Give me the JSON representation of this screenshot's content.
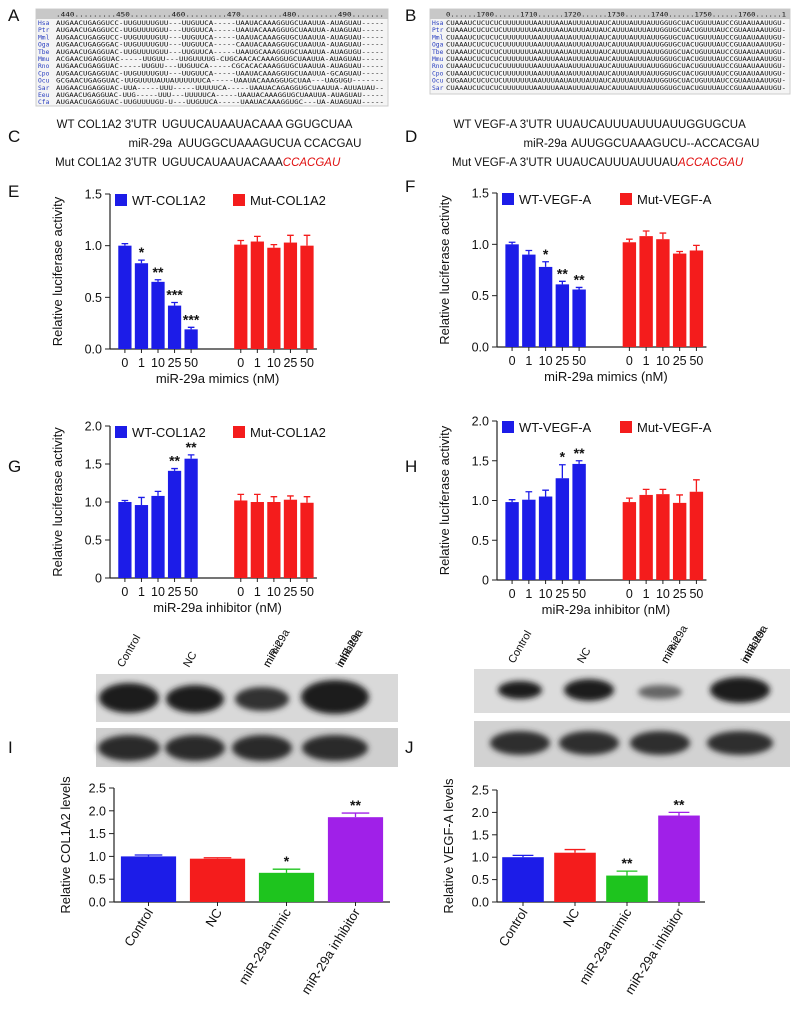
{
  "panel_labels": [
    "A",
    "B",
    "C",
    "D",
    "E",
    "F",
    "G",
    "H",
    "I",
    "J"
  ],
  "alignments": [
    {
      "ruler": ".440.........450.........460.........470.........480.........490.......",
      "rows": [
        {
          "species": "Hsa",
          "sequence": "AUGAACUGAGGUCC-UUGUUUUGUU---UUGUUCA-----UAAUACAAAGGUGCUAAUUA-AUAGUAU-----"
        },
        {
          "species": "Ptr",
          "sequence": "AUGAACUGAGGUCC-UUGUUUUGUU---UUGUUCA-----UAAUACAAAGGUGCUAAUUA-AUAGUAU-----"
        },
        {
          "species": "Mml",
          "sequence": "AUGAACUGAGGUCC-UUGUUUUGUU---UUGUUCA-----UAAUACAAAGGUGCUAAUUA-AUAGUAU-----"
        },
        {
          "species": "Oga",
          "sequence": "AUGAACUGAGGGAC-UUGUUUUGUU---UUGUUCA-----CAAUACAAAGGUGCUAAUUA-AUAGUAU-----"
        },
        {
          "species": "Tbe",
          "sequence": "AUGAACUGAGGUAC-UUGUUUUGUU---UUGUUCA-----UAAUGCAAAGGUGCUAAUUA-AUAGUGU-----"
        },
        {
          "species": "Mmu",
          "sequence": "ACGAACUGAGGUAC-----UUGUU---UUGUUUUG-CUGCAACACAAAGGUGCUAAUUA-AUAGUAU-----"
        },
        {
          "species": "Rno",
          "sequence": "AUGAACUGAGGUAC-----UUGUU---UUGUUCA-----CGCACACAAAGGUGCUAAUUA-AUAGUAU-----"
        },
        {
          "species": "Cpo",
          "sequence": "AUGAACUGAGGUAC-UUGUUUUGUU---UUGUUCA-----UAAUACAAAGGUGCUAAUUA-GCAGUAU-----"
        },
        {
          "species": "Ocu",
          "sequence": "GCGAACUGAGGUAC-UUGUUUUAUUAUUUUUUCA-----UAAUACAAAGGUGCUAA---UAGUGU-------"
        },
        {
          "species": "Sar",
          "sequence": "AUGAACUGAGGUAC-UUA-----UUU-----UUUUUCA-----UAAUACAGAGGUGCUAAUUA-AUUAUAU--"
        },
        {
          "species": "Eeu",
          "sequence": "AUGAACUGAGGUAC-UUG-----UUU---UUUUUCA-----UAAUACAAAGGUGCUAAUUA-AUAGUAU-----"
        },
        {
          "species": "Cfa",
          "sequence": "AUGAACUGAGGUAC-UUGUUUUGU-U---UUGUUCA-----UAAUACAAAGGUGC---UA-AUAGUAU-----"
        }
      ]
    },
    {
      "ruler": "0......1700......1710......1720......1730......1740......1750......1760......1",
      "rows": [
        {
          "species": "Hsa",
          "sequence": "CUAAAUCUCUCUCUUUUUUUAAUUUAAUAUUUAUUAUCAUUUAUUUAUUGGUGCUACUGUUUAUCCGUAAUAAUUGU-"
        },
        {
          "species": "Ptr",
          "sequence": "CUAAAUCUCUCUCUUUUUUUAAUUUAAUAUUUAUUAUCAUUUAUUUAUUGGUGCUACUGUUUAUCCGUAAUAAUUGU-"
        },
        {
          "species": "Mml",
          "sequence": "CUAAAUCUCUCUCUUUUUUUAAUUUAAUAUUUAUUAUCAUUUAUUUAUUGGUGCUACUGUUUAUCCGUAAUAAUUGU-"
        },
        {
          "species": "Oga",
          "sequence": "CUAAAUCUCUCUCUUUUUUUAAUUUAAUAUUUAUUAUCAUUUAUUUAUUGGUGCUACUGUUUAUCCGUAAUAAUUGU-"
        },
        {
          "species": "Tbe",
          "sequence": "CUAAAUCUCUCUCUUUUUUUAAUUUAAUAUUUAUUAUCAUUUAUUUAUUGGUGCUACUGUUUAUCCGUAAUAAUUGU-"
        },
        {
          "species": "Mmu",
          "sequence": "CUAAAUCUCUCUCUUUUUUUAAUUUAAUAUUUAUUAUCAUUUAUUUAUUGGUGCUACUGUUUAUCCGUAAUAAUUGU-"
        },
        {
          "species": "Rno",
          "sequence": "CUAAAUCUCUCUCUUUUUUUAAUUUAAUAUUUAUUAUCAUUUAUUUAUUGGUGCUACUGUUUAUCCGUAAUAAUUGU-"
        },
        {
          "species": "Cpo",
          "sequence": "CUAAAUCUCUCUCUUUUUUUAAUUUAAUAUUUAUUAUCAUUUAUUUAUUGGUGCUACUGUUUAUCCGUAAUAAUUGU-"
        },
        {
          "species": "Ocu",
          "sequence": "CUGAAUCUCUCUCUUUUUUUAAUUUAAUAUUUAUUAUCAUUUAUUUAUUGGUGCUACUGUUUAUCCGUAAUAAUUGU-"
        },
        {
          "species": "Sar",
          "sequence": "CUAAAUCUCUCUCUUUUUUUAAUUUAAUAUUUAUUAUCAUUUAUUUAUUGGUGCUACUGUUUAUCCGUAAUAAUUGU-"
        }
      ]
    }
  ],
  "binding_sites": [
    {
      "lines": [
        {
          "label": "WT COL1A2 3'UTR",
          "sequence": "UGUUCAUAAUACAAA GGUGCUAA"
        },
        {
          "label": "miR-29a",
          "sequence": "AUUGGCUAAAGUCUA CCACGAU"
        },
        {
          "label": "Mut COL1A2 3'UTR",
          "sequence": "UGUUCAUAAUACAAA",
          "mutation": "CCACGAU"
        }
      ]
    },
    {
      "lines": [
        {
          "label": "WT VEGF-A 3'UTR",
          "sequence": "UUAUCAUUUAUUUAUUGGUGCUA"
        },
        {
          "label": "miR-29a",
          "sequence": "AUUGGCUAAAGUCU--ACCACGAU"
        },
        {
          "label": "Mut VEGF-A 3'UTR",
          "sequence": "UUAUCAUUUAUUUAU",
          "mutation": "ACCACGAU"
        }
      ]
    }
  ],
  "blots": [
    {
      "columns": [
        [
          "Control"
        ],
        [
          "NC"
        ],
        [
          "miR-29a",
          "mimic"
        ],
        [
          "miR-29a",
          "inhibitor"
        ]
      ]
    },
    {
      "columns": [
        [
          "Control"
        ],
        [
          "NC"
        ],
        [
          "miR-29a",
          "mimic"
        ],
        [
          "miR-29a",
          "inhibitor"
        ]
      ]
    }
  ],
  "chart_data": [
    {
      "type": "bar",
      "ylabel": "Relative luciferase activity",
      "xlabel": "miR-29a mimics (nM)",
      "categories": [
        "0",
        "1",
        "10",
        "25",
        "50"
      ],
      "ylim": [
        0,
        1.5
      ],
      "yticks": [
        {
          "value": 0,
          "label": "0.0"
        },
        0.5,
        {
          "value": 1,
          "label": "1.0"
        },
        1.5
      ],
      "legend": "top",
      "series": [
        {
          "name": "WT-COL1A2",
          "color": "#1c1ce8",
          "values": [
            1.0,
            0.83,
            0.65,
            0.42,
            0.19
          ],
          "errors": [
            0.02,
            0.03,
            0.02,
            0.03,
            0.02
          ],
          "significance": [
            null,
            "*",
            "**",
            "***",
            "***"
          ]
        },
        {
          "name": "Mut-COL1A2",
          "color": "#f41c1c",
          "values": [
            1.01,
            1.04,
            0.98,
            1.03,
            1.0
          ],
          "errors": [
            0.04,
            0.05,
            0.03,
            0.07,
            0.1
          ]
        }
      ]
    },
    {
      "type": "bar",
      "ylabel": "Relative luciferase activity",
      "xlabel": "miR-29a mimics (nM)",
      "categories": [
        "0",
        "1",
        "10",
        "25",
        "50"
      ],
      "ylim": [
        0,
        1.5
      ],
      "yticks": [
        {
          "value": 0,
          "label": "0.0"
        },
        0.5,
        {
          "value": 1,
          "label": "1.0"
        },
        1.5
      ],
      "legend": "top",
      "series": [
        {
          "name": "WT-VEGF-A",
          "color": "#1c1ce8",
          "values": [
            1.0,
            0.9,
            0.78,
            0.61,
            0.56
          ],
          "errors": [
            0.02,
            0.04,
            0.05,
            0.03,
            0.02
          ],
          "significance": [
            null,
            null,
            "*",
            "**",
            "**"
          ]
        },
        {
          "name": "Mut-VEGF-A",
          "color": "#f41c1c",
          "values": [
            1.02,
            1.08,
            1.05,
            0.91,
            0.94
          ],
          "errors": [
            0.03,
            0.05,
            0.06,
            0.02,
            0.05
          ]
        }
      ]
    },
    {
      "type": "bar",
      "ylabel": "Relative luciferase activity",
      "xlabel": "miR-29a inhibitor (nM)",
      "categories": [
        "0",
        "1",
        "10",
        "25",
        "50"
      ],
      "ylim": [
        0,
        2
      ],
      "yticks": [
        0,
        0.5,
        {
          "value": 1,
          "label": "1.0"
        },
        1.5,
        {
          "value": 2,
          "label": "2.0"
        }
      ],
      "legend": "top",
      "series": [
        {
          "name": "WT-COL1A2",
          "color": "#1c1ce8",
          "values": [
            1.0,
            0.96,
            1.08,
            1.41,
            1.57
          ],
          "errors": [
            0.02,
            0.1,
            0.06,
            0.03,
            0.05
          ],
          "significance": [
            null,
            null,
            null,
            "**",
            "**"
          ]
        },
        {
          "name": "Mut-COL1A2",
          "color": "#f41c1c",
          "values": [
            1.02,
            1.0,
            1.0,
            1.03,
            0.99
          ],
          "errors": [
            0.08,
            0.1,
            0.07,
            0.05,
            0.08
          ]
        }
      ]
    },
    {
      "type": "bar",
      "ylabel": "Relative luciferase activity",
      "xlabel": "miR-29a inhibitor (nM)",
      "categories": [
        "0",
        "1",
        "10",
        "25",
        "50"
      ],
      "ylim": [
        0,
        2
      ],
      "yticks": [
        0,
        0.5,
        {
          "value": 1,
          "label": "1.0"
        },
        1.5,
        {
          "value": 2,
          "label": "2.0"
        }
      ],
      "legend": "top",
      "series": [
        {
          "name": "WT-VEGF-A",
          "color": "#1c1ce8",
          "values": [
            0.98,
            1.01,
            1.05,
            1.28,
            1.46
          ],
          "errors": [
            0.03,
            0.1,
            0.08,
            0.17,
            0.04
          ],
          "significance": [
            null,
            null,
            null,
            "*",
            "**"
          ]
        },
        {
          "name": "Mut-VEGF-A",
          "color": "#f41c1c",
          "values": [
            0.98,
            1.07,
            1.08,
            0.97,
            1.11
          ],
          "errors": [
            0.05,
            0.07,
            0.06,
            0.1,
            0.15
          ]
        }
      ]
    },
    {
      "type": "bar",
      "ylabel": "Relative COL1A2 levels",
      "categories": [
        "Control",
        "NC",
        "miR-29a mimic",
        "miR-29a inhibitor"
      ],
      "values": [
        1.0,
        0.95,
        0.64,
        1.86
      ],
      "errors": [
        0.03,
        0.02,
        0.08,
        0.09
      ],
      "significance": [
        null,
        null,
        "*",
        "**"
      ],
      "colors": [
        "#1c1ce8",
        "#f41c1c",
        "#1ec41e",
        "#a020e8"
      ],
      "ylim": [
        0,
        2.5
      ],
      "yticks": [
        {
          "value": 0,
          "label": "0.0"
        },
        0.5,
        {
          "value": 1,
          "label": "1.0"
        },
        1.5,
        {
          "value": 2,
          "label": "2.0"
        },
        2.5
      ]
    },
    {
      "type": "bar",
      "ylabel": "Relative VEGF-A levels",
      "categories": [
        "Control",
        "NC",
        "miR-29a mimic",
        "miR-29a inhibitor"
      ],
      "values": [
        1.0,
        1.1,
        0.59,
        1.93
      ],
      "errors": [
        0.04,
        0.07,
        0.1,
        0.07
      ],
      "significance": [
        null,
        null,
        "**",
        "**"
      ],
      "colors": [
        "#1c1ce8",
        "#f41c1c",
        "#1ec41e",
        "#a020e8"
      ],
      "ylim": [
        0,
        2.5
      ],
      "yticks": [
        {
          "value": 0,
          "label": "0.0"
        },
        0.5,
        {
          "value": 1,
          "label": "1.0"
        },
        1.5,
        {
          "value": 2,
          "label": "2.0"
        },
        2.5
      ]
    }
  ]
}
